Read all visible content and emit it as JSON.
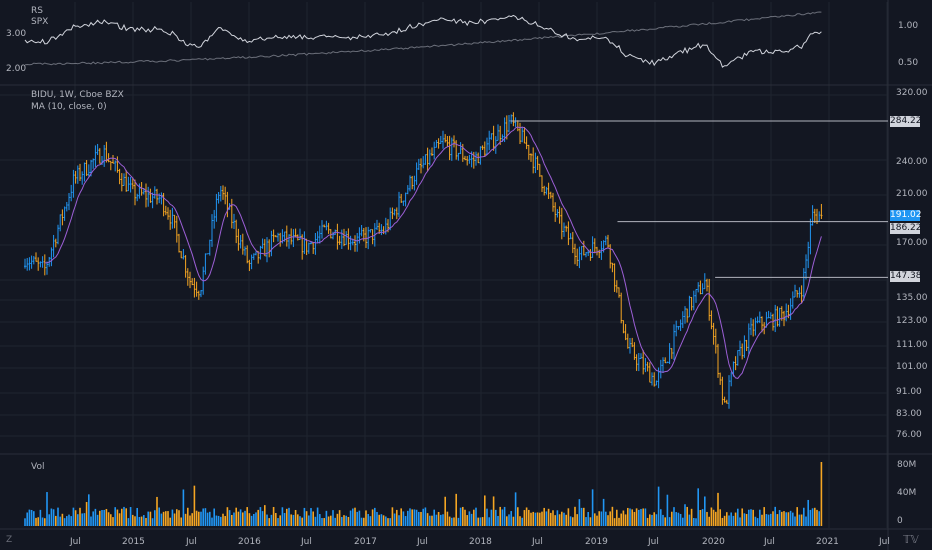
{
  "colors": {
    "bg": "#131722",
    "grid": "#1f2430",
    "sep": "#2a2e39",
    "axis_text": "#b2b5be",
    "up": "#2196f3",
    "down": "#f5a623",
    "ma": "#9c5fd6",
    "line_main": "#d1d4dc",
    "line_spx": "#6b6f7a",
    "level": "#b2b5be",
    "last_price_bg": "#2196f3"
  },
  "rs_panel": {
    "title": "RS",
    "series2": "SPX",
    "left_ticks": [
      "3.00",
      "2.00"
    ],
    "right_ticks": [
      "1.00",
      "0.50"
    ]
  },
  "main_panel": {
    "title": "BIDU, 1W, Cboe BZX",
    "indicator": "MA (10, close, 0)",
    "y_ticks": [
      "320.00",
      "284.22",
      "240.00",
      "210.00",
      "191.02",
      "186.22",
      "170.00",
      "147.38",
      "135.00",
      "123.00",
      "111.00",
      "101.00",
      "91.00",
      "83.00",
      "76.00"
    ],
    "price_labels": [
      {
        "value": "284.22",
        "type": "level"
      },
      {
        "value": "191.02",
        "type": "last"
      },
      {
        "value": "186.22",
        "type": "level"
      },
      {
        "value": "147.38",
        "type": "level"
      }
    ]
  },
  "vol_panel": {
    "title": "Vol",
    "y_ticks": [
      "80M",
      "40M",
      "0"
    ]
  },
  "time_axis": {
    "labels": [
      "Jul",
      "2015",
      "Jul",
      "2016",
      "Jul",
      "2017",
      "Jul",
      "2018",
      "Jul",
      "2019",
      "Jul",
      "2020",
      "Jul",
      "2021",
      "Jul"
    ]
  },
  "corner_left": "Z",
  "corner_right": "TradingView logo",
  "chart_data": {
    "type": "ohlc",
    "symbol": "BIDU",
    "interval": "1W",
    "exchange": "Cboe BZX",
    "x_range": [
      "2014-03",
      "2021-01"
    ],
    "ylim_price": [
      76,
      320
    ],
    "log_scale": true,
    "price_path": [
      {
        "date": "2014-03",
        "price": 160
      },
      {
        "date": "2014-05",
        "price": 152
      },
      {
        "date": "2014-08",
        "price": 222
      },
      {
        "date": "2014-11",
        "price": 250
      },
      {
        "date": "2015-02",
        "price": 210
      },
      {
        "date": "2015-05",
        "price": 205
      },
      {
        "date": "2015-06",
        "price": 190
      },
      {
        "date": "2015-08",
        "price": 145
      },
      {
        "date": "2015-09",
        "price": 140
      },
      {
        "date": "2015-11",
        "price": 215
      },
      {
        "date": "2016-02",
        "price": 155
      },
      {
        "date": "2016-05",
        "price": 175
      },
      {
        "date": "2016-08",
        "price": 168
      },
      {
        "date": "2016-10",
        "price": 180
      },
      {
        "date": "2017-01",
        "price": 172
      },
      {
        "date": "2017-04",
        "price": 180
      },
      {
        "date": "2017-07",
        "price": 225
      },
      {
        "date": "2017-10",
        "price": 260
      },
      {
        "date": "2018-01",
        "price": 240
      },
      {
        "date": "2018-05",
        "price": 284
      },
      {
        "date": "2018-07",
        "price": 250
      },
      {
        "date": "2018-10",
        "price": 185
      },
      {
        "date": "2018-12",
        "price": 162
      },
      {
        "date": "2019-03",
        "price": 172
      },
      {
        "date": "2019-05",
        "price": 110
      },
      {
        "date": "2019-08",
        "price": 95
      },
      {
        "date": "2019-11",
        "price": 128
      },
      {
        "date": "2020-01",
        "price": 145
      },
      {
        "date": "2020-03",
        "price": 85
      },
      {
        "date": "2020-04",
        "price": 102
      },
      {
        "date": "2020-06",
        "price": 120
      },
      {
        "date": "2020-09",
        "price": 126
      },
      {
        "date": "2020-11",
        "price": 142
      },
      {
        "date": "2020-12",
        "price": 191.02
      }
    ],
    "levels": [
      {
        "date": "2018-05",
        "price": 284.22
      },
      {
        "date": "2019-04",
        "price": 186.22
      },
      {
        "date": "2020-02",
        "price": 147.38
      }
    ],
    "last_price": 191.02,
    "ma_period": 10,
    "rs_ratio_range": [
      0.45,
      1.25
    ],
    "volume_ylim": [
      0,
      80000000
    ],
    "volume_peak": 80000000
  }
}
